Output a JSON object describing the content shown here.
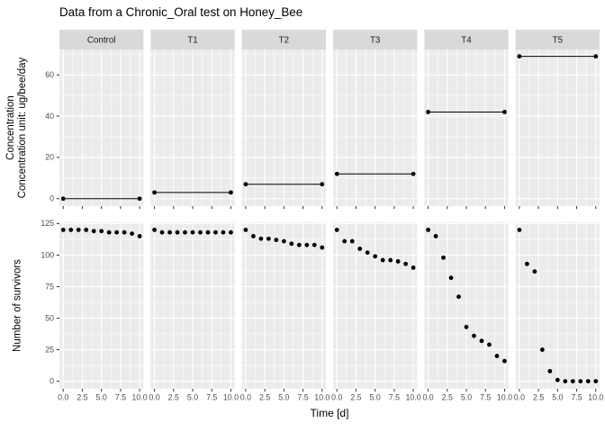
{
  "title": "Data from a Chronic_Oral test on Honey_Bee",
  "chart_data": {
    "type": "scatter",
    "title": "Data from a Chronic_Oral test on Honey_Bee",
    "facets": [
      "Control",
      "T1",
      "T2",
      "T3",
      "T4",
      "T5"
    ],
    "xlabel": "Time [d]",
    "x_days": [
      0,
      1,
      2,
      3,
      4,
      5,
      6,
      7,
      8,
      9,
      10
    ],
    "x_ticks": [
      0,
      2.5,
      5,
      7.5,
      10
    ],
    "x_tick_labels": [
      "0.0",
      "2.5",
      "5.0",
      "7.5",
      "10.0"
    ],
    "x_minor_ticks": [
      1.25,
      3.75,
      6.25,
      8.75
    ],
    "x_range": [
      -0.5,
      10.5
    ],
    "top_row": {
      "ylabel_line1": "Concentration",
      "ylabel_line2": "Concentration unit: ug/bee/day",
      "y_ticks": [
        0,
        20,
        40,
        60
      ],
      "y_minor_ticks": [
        10,
        30,
        50,
        70
      ],
      "y_range": [
        -3.6,
        72.3
      ],
      "series_note": "constant concentration from day 0 to day 10 per treatment",
      "concentrations": [
        0,
        3,
        7,
        12,
        42,
        69
      ]
    },
    "bottom_row": {
      "ylabel": "Number of survivors",
      "y_ticks": [
        0,
        25,
        50,
        75,
        100,
        125
      ],
      "y_minor_ticks": [
        12.5,
        37.5,
        62.5,
        87.5,
        112.5
      ],
      "y_range": [
        -6,
        126
      ],
      "survivors": [
        [
          120,
          120,
          120,
          120,
          119,
          119,
          118,
          118,
          118,
          117,
          115
        ],
        [
          120,
          118,
          118,
          118,
          118,
          118,
          118,
          118,
          118,
          118,
          118
        ],
        [
          120,
          115,
          113,
          113,
          112,
          111,
          109,
          108,
          108,
          108,
          106
        ],
        [
          120,
          111,
          111,
          105,
          102,
          99,
          96,
          96,
          95,
          93,
          90
        ],
        [
          120,
          115,
          98,
          82,
          67,
          43,
          36,
          32,
          29,
          20,
          16
        ],
        [
          120,
          93,
          87,
          25,
          8,
          1,
          0,
          0,
          0,
          0,
          0
        ]
      ]
    },
    "legend": "none",
    "grid": "on",
    "colors": {
      "panel_bg": "#EBEBEB",
      "strip_bg": "#D9D9D9",
      "grid": "#FFFFFF",
      "point": "#000000",
      "line": "#000000",
      "axis_text": "#4D4D4D",
      "strip_text": "#1A1A1A",
      "tick_mark": "#333333",
      "title_text": "#000000"
    }
  }
}
